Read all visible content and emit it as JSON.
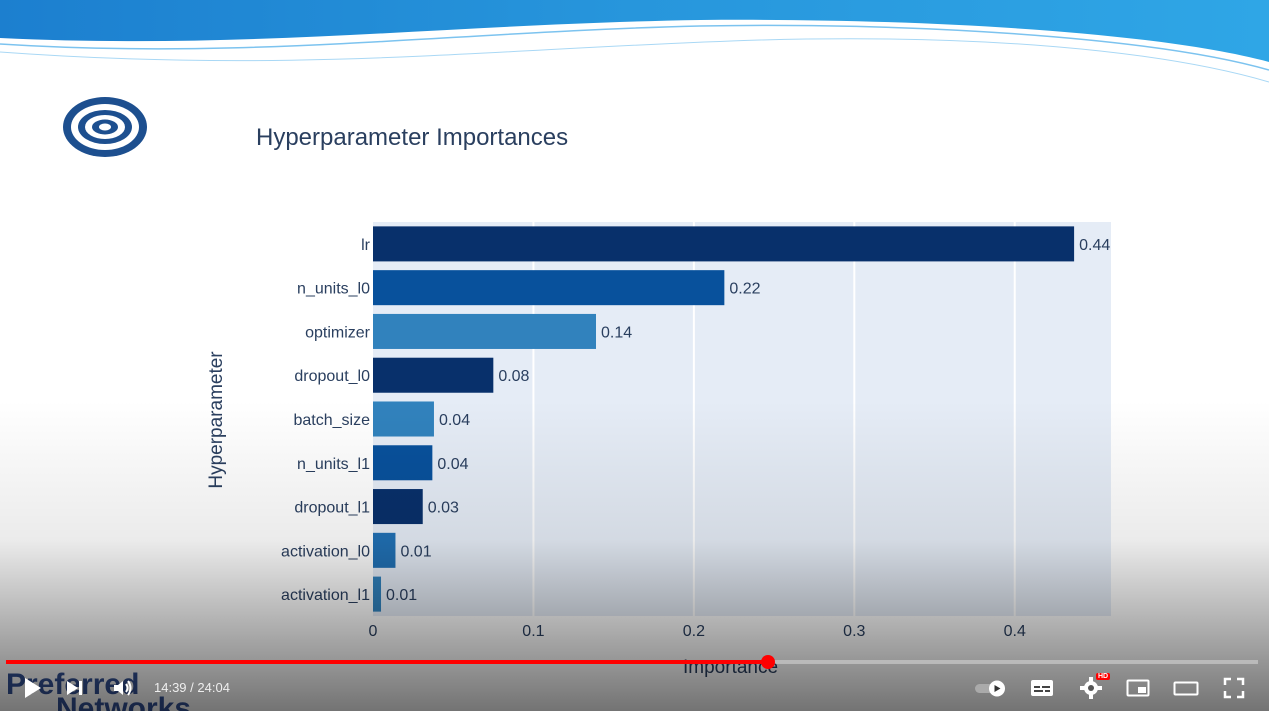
{
  "chart_data": {
    "type": "bar",
    "orientation": "horizontal",
    "title": "Hyperparameter Importances",
    "xlabel": "Importance",
    "ylabel": "Hyperparameter",
    "categories": [
      "lr",
      "n_units_l0",
      "optimizer",
      "dropout_l0",
      "batch_size",
      "n_units_l1",
      "dropout_l1",
      "activation_l0",
      "activation_l1"
    ],
    "values": [
      0.437,
      0.219,
      0.139,
      0.075,
      0.038,
      0.037,
      0.031,
      0.014,
      0.005
    ],
    "value_labels": [
      "0.44",
      "0.22",
      "0.14",
      "0.08",
      "0.04",
      "0.04",
      "0.03",
      "0.01",
      "0.01"
    ],
    "bar_colors": [
      "#08306b",
      "#08519c",
      "#3182bd",
      "#08306b",
      "#3182bd",
      "#08519c",
      "#08306b",
      "#2171b5",
      "#3182bd"
    ],
    "xlim": [
      0,
      0.46
    ],
    "xticks": [
      0,
      0.1,
      0.2,
      0.3,
      0.4
    ],
    "xtick_labels": [
      "0",
      "0.1",
      "0.2",
      "0.3",
      "0.4"
    ],
    "grid": true,
    "plot_background": "#e5ecf6"
  },
  "branding": {
    "line1": "Preferred",
    "line2": "Networks",
    "color": "#1d3f8a"
  },
  "player": {
    "current_time": "14:39",
    "separator": " / ",
    "duration": "24:04",
    "progress": 0.609,
    "hd_badge": "HD",
    "accent": "#ff0000"
  }
}
